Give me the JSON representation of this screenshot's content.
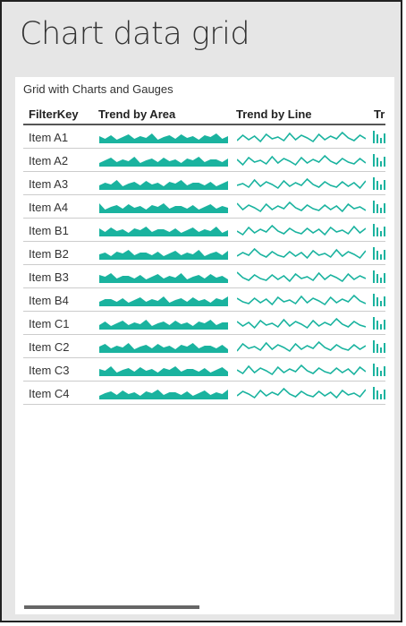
{
  "title": "Chart data grid",
  "subtitle": "Grid with Charts and Gauges",
  "columns": [
    "FilterKey",
    "Trend by Area",
    "Trend by Line",
    "Tr"
  ],
  "rows": [
    "Item A1",
    "Item A2",
    "Item A3",
    "Item A4",
    "Item B1",
    "Item B2",
    "Item B3",
    "Item B4",
    "Item C1",
    "Item C2",
    "Item C3",
    "Item C4"
  ],
  "colors": {
    "accent": "#1ab39f",
    "border": "#222222",
    "background": "#e6e6e6"
  }
}
